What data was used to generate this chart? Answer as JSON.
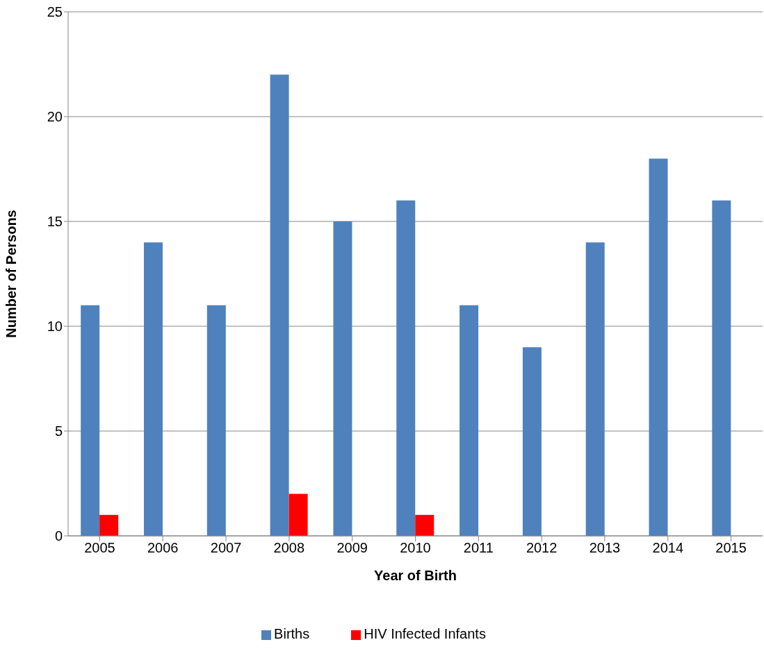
{
  "chart_data": {
    "type": "bar",
    "xlabel": "Year of Birth",
    "ylabel": "Number of Persons",
    "categories": [
      "2005",
      "2006",
      "2007",
      "2008",
      "2009",
      "2010",
      "2011",
      "2012",
      "2013",
      "2014",
      "2015"
    ],
    "series": [
      {
        "name": "Births",
        "color": "#4f81bd",
        "values": [
          11,
          14,
          11,
          22,
          15,
          16,
          11,
          9,
          14,
          18,
          16
        ]
      },
      {
        "name": "HIV Infected Infants",
        "color": "#ff0000",
        "values": [
          1,
          0,
          0,
          2,
          0,
          1,
          0,
          0,
          0,
          0,
          0
        ]
      }
    ],
    "ylim": [
      0,
      25
    ],
    "yticks": [
      0,
      5,
      10,
      15,
      20,
      25
    ],
    "grid": "y",
    "legend": "bottom"
  }
}
